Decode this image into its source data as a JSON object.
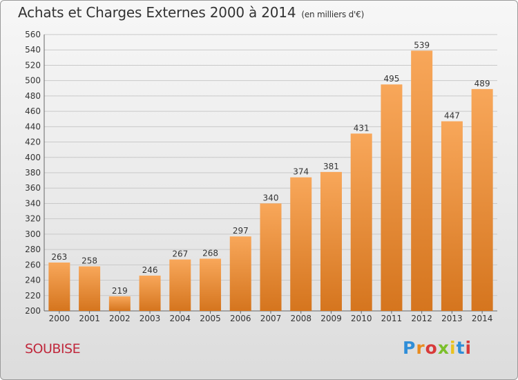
{
  "header": {
    "title": "Achats et Charges Externes 2000 à 2014",
    "subtitle": "(en milliers d'€)"
  },
  "footer": {
    "commune": "SOUBISE",
    "logo": "Proxiti"
  },
  "colors": {
    "bar_light": "#f8a75a",
    "bar_dark": "#d5751e",
    "title": "#333333",
    "commune": "#c0283c"
  },
  "chart_data": {
    "type": "bar",
    "title": "Achats et Charges Externes 2000 à 2014",
    "subtitle": "(en milliers d'€)",
    "xlabel": "",
    "ylabel": "",
    "categories": [
      "2000",
      "2001",
      "2002",
      "2003",
      "2004",
      "2005",
      "2006",
      "2007",
      "2008",
      "2009",
      "2010",
      "2011",
      "2012",
      "2013",
      "2014"
    ],
    "values": [
      263,
      258,
      219,
      246,
      267,
      268,
      297,
      340,
      374,
      381,
      431,
      495,
      539,
      447,
      489
    ],
    "ylim": [
      200,
      560
    ],
    "yticks": [
      200,
      220,
      240,
      260,
      280,
      300,
      320,
      340,
      360,
      380,
      400,
      420,
      440,
      460,
      480,
      500,
      520,
      540,
      560
    ],
    "grid": true,
    "legend": "none"
  }
}
